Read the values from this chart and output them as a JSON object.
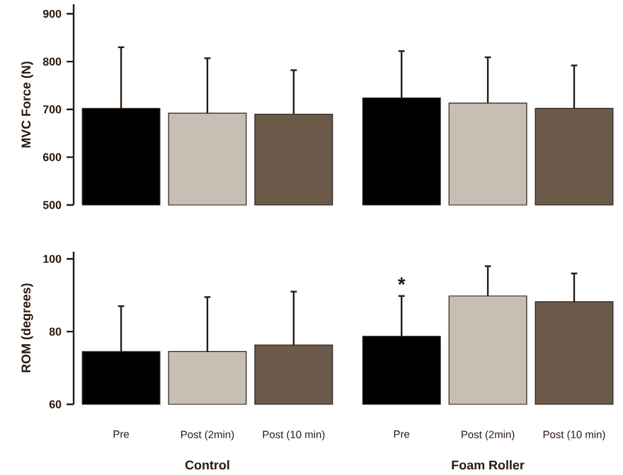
{
  "chart_data": [
    {
      "type": "bar",
      "ylabel": "MVC Force (N)",
      "categories": [
        null,
        null,
        null,
        null,
        null,
        null
      ],
      "colors": [
        "#000000",
        "#c8bfb4",
        "#6b5a4a",
        "#000000",
        "#c8bfb4",
        "#6b5a4a"
      ],
      "values": [
        702,
        692,
        690,
        724,
        713,
        702
      ],
      "errors": [
        [
          702,
          830
        ],
        [
          692,
          807
        ],
        [
          690,
          782
        ],
        [
          724,
          822
        ],
        [
          713,
          809
        ],
        [
          702,
          792
        ]
      ],
      "ylim": [
        500,
        920
      ],
      "yticks": [
        500,
        600,
        700,
        800,
        900
      ],
      "tick_labels": "y"
    },
    {
      "type": "bar",
      "ylabel": "ROM (degrees)",
      "categories": [
        "Pre",
        "Post (2min)",
        "Post (10 min)",
        "Pre",
        "Post (2min)",
        "Post (10 min)"
      ],
      "colors": [
        "#000000",
        "#c8bfb4",
        "#6b5a4a",
        "#000000",
        "#c8bfb4",
        "#6b5a4a"
      ],
      "values": [
        74.5,
        74.5,
        76.3,
        78.7,
        89.8,
        88.2
      ],
      "errors": [
        [
          74.5,
          87
        ],
        [
          74.5,
          89.5
        ],
        [
          76.3,
          91
        ],
        [
          78.7,
          89.8
        ],
        [
          89.8,
          98
        ],
        [
          88.2,
          96
        ]
      ],
      "ylim": [
        60,
        102
      ],
      "yticks": [
        60,
        80,
        100
      ],
      "annotations": [
        "*",
        "Control",
        "Foam Roller"
      ]
    }
  ]
}
